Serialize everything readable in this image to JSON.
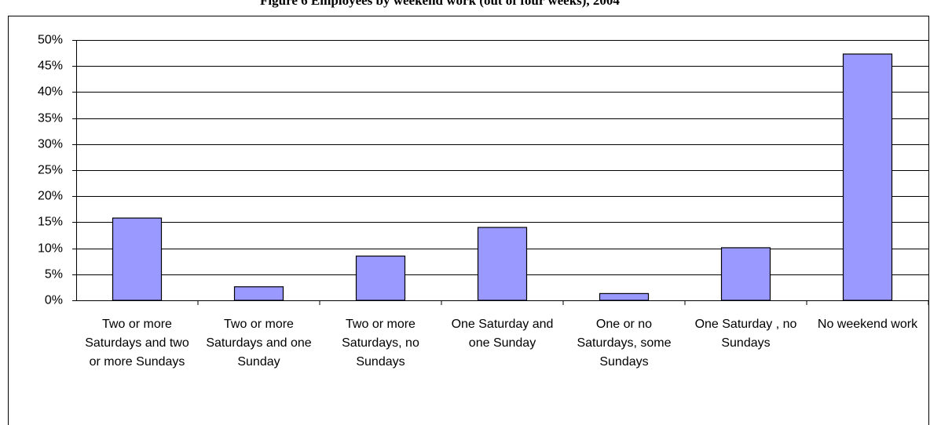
{
  "chart_data": {
    "type": "bar",
    "title": "Figure 6 Employees by weekend work (out of four weeks), 2004",
    "categories": [
      "Two or more Saturdays and two or more Sundays",
      "Two or more Saturdays and one Sunday",
      "Two or more Saturdays, no Sundays",
      "One Saturday and one Sunday",
      "One or no Saturdays, some Sundays",
      "One Saturday , no Sundays",
      "No weekend work"
    ],
    "values": [
      15.8,
      2.6,
      8.5,
      14.0,
      1.3,
      10.1,
      47.3
    ],
    "color": "#9999ff",
    "ylim": [
      0,
      50
    ],
    "yticks": [
      {
        "value": 0,
        "label": "0%"
      },
      {
        "value": 5,
        "label": "5%"
      },
      {
        "value": 10,
        "label": "10%"
      },
      {
        "value": 15,
        "label": "15%"
      },
      {
        "value": 20,
        "label": "20%"
      },
      {
        "value": 25,
        "label": "25%"
      },
      {
        "value": 30,
        "label": "30%"
      },
      {
        "value": 35,
        "label": "35%"
      },
      {
        "value": 40,
        "label": "40%"
      },
      {
        "value": 45,
        "label": "45%"
      },
      {
        "value": 50,
        "label": "50%"
      }
    ],
    "grid": true
  }
}
